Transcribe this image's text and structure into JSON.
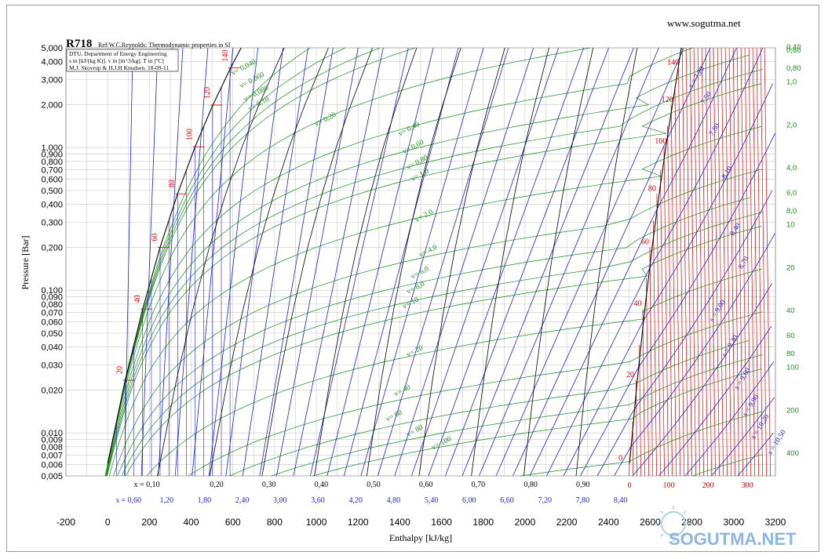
{
  "header": {
    "website": "www.sogutma.net",
    "refrigerant": "R718",
    "reference": "Ref:W.C.Reynolds: Thermodynamic properties in SI",
    "info_lines": [
      "DTU, Department of Energy Engineering",
      "s in [kJ/(kg K)]. v in [m^3/kg]. T in [ºC]",
      "M.J. Skovrup & H.J.H Knudsen. 18-09-11"
    ]
  },
  "watermark": "SOGUTMA.NET",
  "chart_data": {
    "type": "line",
    "title": "R718",
    "xlabel": "Enthalpy [kJ/kg]",
    "ylabel": "Pressure [Bar]",
    "xlim": [
      -200,
      3200
    ],
    "ylim": [
      0.005,
      5.0
    ],
    "y_scale": "log",
    "x_ticks": [
      "-200",
      "0",
      "200",
      "400",
      "600",
      "800",
      "1000",
      "1200",
      "1400",
      "1600",
      "1800",
      "2000",
      "2200",
      "2400",
      "2600",
      "2800",
      "3000",
      "3200"
    ],
    "y_ticks": [
      "5,000",
      "4,000",
      "3,000",
      "2,000",
      "1,000",
      "0,900",
      "0,800",
      "0,700",
      "0,600",
      "0,500",
      "0,400",
      "0,300",
      "0,200",
      "0,100",
      "0,090",
      "0,080",
      "0,070",
      "0,060",
      "0,050",
      "0,040",
      "0,030",
      "0,020",
      "0,010",
      "0,009",
      "0,008",
      "0,007",
      "0,006",
      "0,005"
    ],
    "y_tick_values": [
      5.0,
      4.0,
      3.0,
      2.0,
      1.0,
      0.9,
      0.8,
      0.7,
      0.6,
      0.5,
      0.4,
      0.3,
      0.2,
      0.1,
      0.09,
      0.08,
      0.07,
      0.06,
      0.05,
      0.04,
      0.03,
      0.02,
      0.01,
      0.009,
      0.008,
      0.007,
      0.006,
      0.005
    ],
    "grid": true,
    "quality_labels": [
      "x = 0,10",
      "0,20",
      "0,30",
      "0,40",
      "0,50",
      "0,60",
      "0,70",
      "0,80",
      "0,90"
    ],
    "quality_values": [
      0.1,
      0.2,
      0.3,
      0.4,
      0.5,
      0.6,
      0.7,
      0.8,
      0.9
    ],
    "entropy_labels": [
      "s = 0,60",
      "1,20",
      "1,80",
      "2,40",
      "3,00",
      "3,60",
      "4,20",
      "4,80",
      "5,40",
      "6,00",
      "6,60",
      "7,20",
      "7,80",
      "8,40"
    ],
    "entropy_values": [
      0.6,
      1.2,
      1.8,
      2.4,
      3.0,
      3.6,
      4.2,
      4.8,
      5.4,
      6.0,
      6.6,
      7.2,
      7.8,
      8.4
    ],
    "temperature_bottom_labels": [
      "0",
      "100",
      "200",
      "300"
    ],
    "temperature_bottom_values": [
      0,
      100,
      200,
      300
    ],
    "saturation_temperatures": [
      "20",
      "40",
      "60",
      "80",
      "100",
      "120",
      "140"
    ],
    "vapor_temperature_labels": [
      "0",
      "20",
      "40",
      "60",
      "80",
      "100",
      "120",
      "140"
    ],
    "entropy_labels_on_chart": [
      "s = 7,20",
      "7,50",
      "7,80",
      "8,10",
      "8,40",
      "8,70",
      "s = 9,00",
      "s = 9,30",
      "s = 9,60",
      "s = 9,90",
      "s = 10,20",
      "s = 10,50"
    ],
    "volume_labels_liquid_side": [
      "v= 0,040",
      "v= 0,060",
      "v= 0,080",
      "v= 0,10",
      "v= 0,20",
      "v= 0,40",
      "v= 0,60",
      "v= 0,80",
      "v= 1,0",
      "v= 2,0",
      "v= 4,0",
      "v= 6,0",
      "v= 8,0",
      "v= 10",
      "v= 20",
      "v= 40",
      "v= 60",
      "v= 80",
      "v= 100"
    ],
    "volume_labels_right_side": [
      "0,40",
      "0,60",
      "0,80",
      "1,0",
      "2,0",
      "4,0",
      "6,0",
      "8,0",
      "10",
      "20",
      "40",
      "60",
      "80",
      "100",
      "200",
      "400"
    ],
    "volume_right_values": [
      0.4,
      0.6,
      0.8,
      1.0,
      2.0,
      4.0,
      6.0,
      8.0,
      10,
      20,
      40,
      60,
      80,
      100,
      200,
      400
    ],
    "saturated_liquid": [
      [
        0,
        0.0061
      ],
      [
        84,
        0.0234
      ],
      [
        168,
        0.0738
      ],
      [
        251,
        0.1993
      ],
      [
        335,
        0.4736
      ],
      [
        419,
        1.0133
      ],
      [
        504,
        1.9854
      ],
      [
        589,
        3.6154
      ]
    ],
    "saturated_vapor": [
      [
        2501,
        0.0061
      ],
      [
        2538,
        0.0234
      ],
      [
        2574,
        0.0738
      ],
      [
        2609,
        0.1993
      ],
      [
        2643,
        0.4736
      ],
      [
        2675,
        1.0133
      ],
      [
        2706,
        1.9854
      ],
      [
        2734,
        3.6154
      ]
    ],
    "colors": {
      "grid": "#c8c8c8",
      "saturation": "#000000",
      "quality": "#000000",
      "entropy": "#1f1fd6",
      "volume": "#1a8a1a",
      "temperature": "#e00000",
      "frame": "#9a9a9a"
    }
  }
}
